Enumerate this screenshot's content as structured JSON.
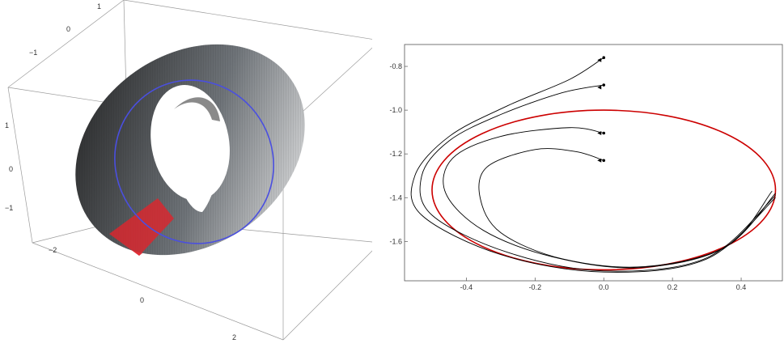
{
  "chart_data": [
    {
      "type": "surface3d",
      "title": "",
      "surface": "torus",
      "surface_color": "#2b2b2b",
      "orbit_color": "#4a4fe0",
      "plane_color": "#e0242c",
      "axes": {
        "top_ticks": [
          "1",
          "0",
          "−1"
        ],
        "left_ticks": [
          "1",
          "0",
          "−1"
        ],
        "bottom_ticks": [
          "−2",
          "0",
          "2"
        ]
      }
    },
    {
      "type": "line",
      "title": "",
      "xlabel": "",
      "ylabel": "",
      "xlim": [
        -0.58,
        0.52
      ],
      "ylim": [
        -1.78,
        -0.7
      ],
      "xticks": [
        -0.4,
        -0.2,
        0.0,
        0.2,
        0.4
      ],
      "yticks": [
        -0.8,
        -1.0,
        -1.2,
        -1.4,
        -1.6
      ],
      "xtick_labels": [
        "-0.4",
        "-0.2",
        "0.0",
        "0.2",
        "0.4"
      ],
      "ytick_labels": [
        "-0.8",
        "-1.0",
        "-1.2",
        "-1.4",
        "-1.6"
      ],
      "limit_cycle": {
        "center": [
          0.0,
          -1.365
        ],
        "rx": 0.5,
        "ry": 0.365,
        "color": "#cc0000"
      },
      "trajectory_color": "#000000",
      "series": [
        {
          "start": [
            0.0,
            -0.76
          ],
          "x": [
            0.0,
            -0.1,
            -0.28,
            -0.45,
            -0.55,
            -0.53,
            -0.3,
            0.0,
            0.3,
            0.5
          ],
          "y": [
            -0.76,
            -0.86,
            -0.98,
            -1.12,
            -1.3,
            -1.48,
            -1.66,
            -1.74,
            -1.68,
            -1.4
          ]
        },
        {
          "start": [
            0.0,
            -0.885
          ],
          "x": [
            0.0,
            -0.12,
            -0.3,
            -0.45,
            -0.53,
            -0.5,
            -0.28,
            0.0,
            0.3,
            0.5
          ],
          "y": [
            -0.885,
            -0.92,
            -1.02,
            -1.14,
            -1.3,
            -1.48,
            -1.65,
            -1.735,
            -1.675,
            -1.39
          ]
        },
        {
          "start": [
            0.0,
            -1.105
          ],
          "x": [
            0.0,
            -0.1,
            -0.3,
            -0.44,
            -0.46,
            -0.35,
            -0.15,
            0.1,
            0.35,
            0.5
          ],
          "y": [
            -1.105,
            -1.08,
            -1.12,
            -1.22,
            -1.38,
            -1.55,
            -1.67,
            -1.72,
            -1.63,
            -1.38
          ]
        },
        {
          "start": [
            0.0,
            -1.23
          ],
          "x": [
            0.0,
            -0.08,
            -0.2,
            -0.34,
            -0.36,
            -0.3,
            -0.12,
            0.12,
            0.36,
            0.49
          ],
          "y": [
            -1.23,
            -1.19,
            -1.18,
            -1.26,
            -1.4,
            -1.56,
            -1.68,
            -1.715,
            -1.62,
            -1.37
          ]
        }
      ]
    }
  ]
}
